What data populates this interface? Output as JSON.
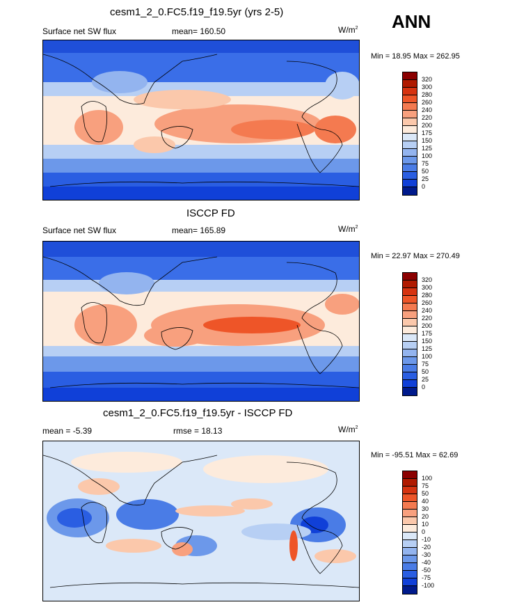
{
  "season_label": "ANN",
  "panel1": {
    "title": "cesm1_2_0.FC5.f19_f19.5yr (yrs 2-5)",
    "variable": "Surface net SW flux",
    "mean": "mean= 160.50",
    "units": "W/m",
    "units_sup": "2",
    "minmax": "Min =  18.95 Max = 262.95"
  },
  "panel2": {
    "title": "ISCCP FD",
    "variable": "Surface net SW flux",
    "mean": "mean= 165.89",
    "units": "W/m",
    "units_sup": "2",
    "minmax": "Min =  22.97 Max = 270.49"
  },
  "panel3": {
    "title": "cesm1_2_0.FC5.f19_f19.5yr - ISCCP FD",
    "mean": "mean =  -5.39",
    "rmse": "rmse =  18.13",
    "units": "W/m",
    "units_sup": "2",
    "minmax": "Min = -95.51 Max =  62.69"
  },
  "colorbar_abs": {
    "labels": [
      "320",
      "300",
      "280",
      "260",
      "240",
      "220",
      "200",
      "175",
      "150",
      "125",
      "100",
      "75",
      "50",
      "25",
      "0"
    ],
    "colors": [
      "#8b0000",
      "#b01a00",
      "#d63310",
      "#ee5528",
      "#f47a50",
      "#f8a07e",
      "#fbc8ab",
      "#fdebdc",
      "#dbe8f8",
      "#b7cff4",
      "#93b4ef",
      "#6c98ea",
      "#4a7ce6",
      "#2a5ee2",
      "#1040d8",
      "#001a8c"
    ]
  },
  "colorbar_diff": {
    "labels": [
      "100",
      "75",
      "50",
      "40",
      "30",
      "20",
      "10",
      "0",
      "-10",
      "-20",
      "-30",
      "-40",
      "-50",
      "-75",
      "-100"
    ],
    "colors": [
      "#8b0000",
      "#b01a00",
      "#d63310",
      "#ee5528",
      "#f47a50",
      "#f8a07e",
      "#fbc8ab",
      "#fdebdc",
      "#dbe8f8",
      "#b7cff4",
      "#93b4ef",
      "#6c98ea",
      "#4a7ce6",
      "#2a5ee2",
      "#1040d8",
      "#001a8c"
    ]
  }
}
